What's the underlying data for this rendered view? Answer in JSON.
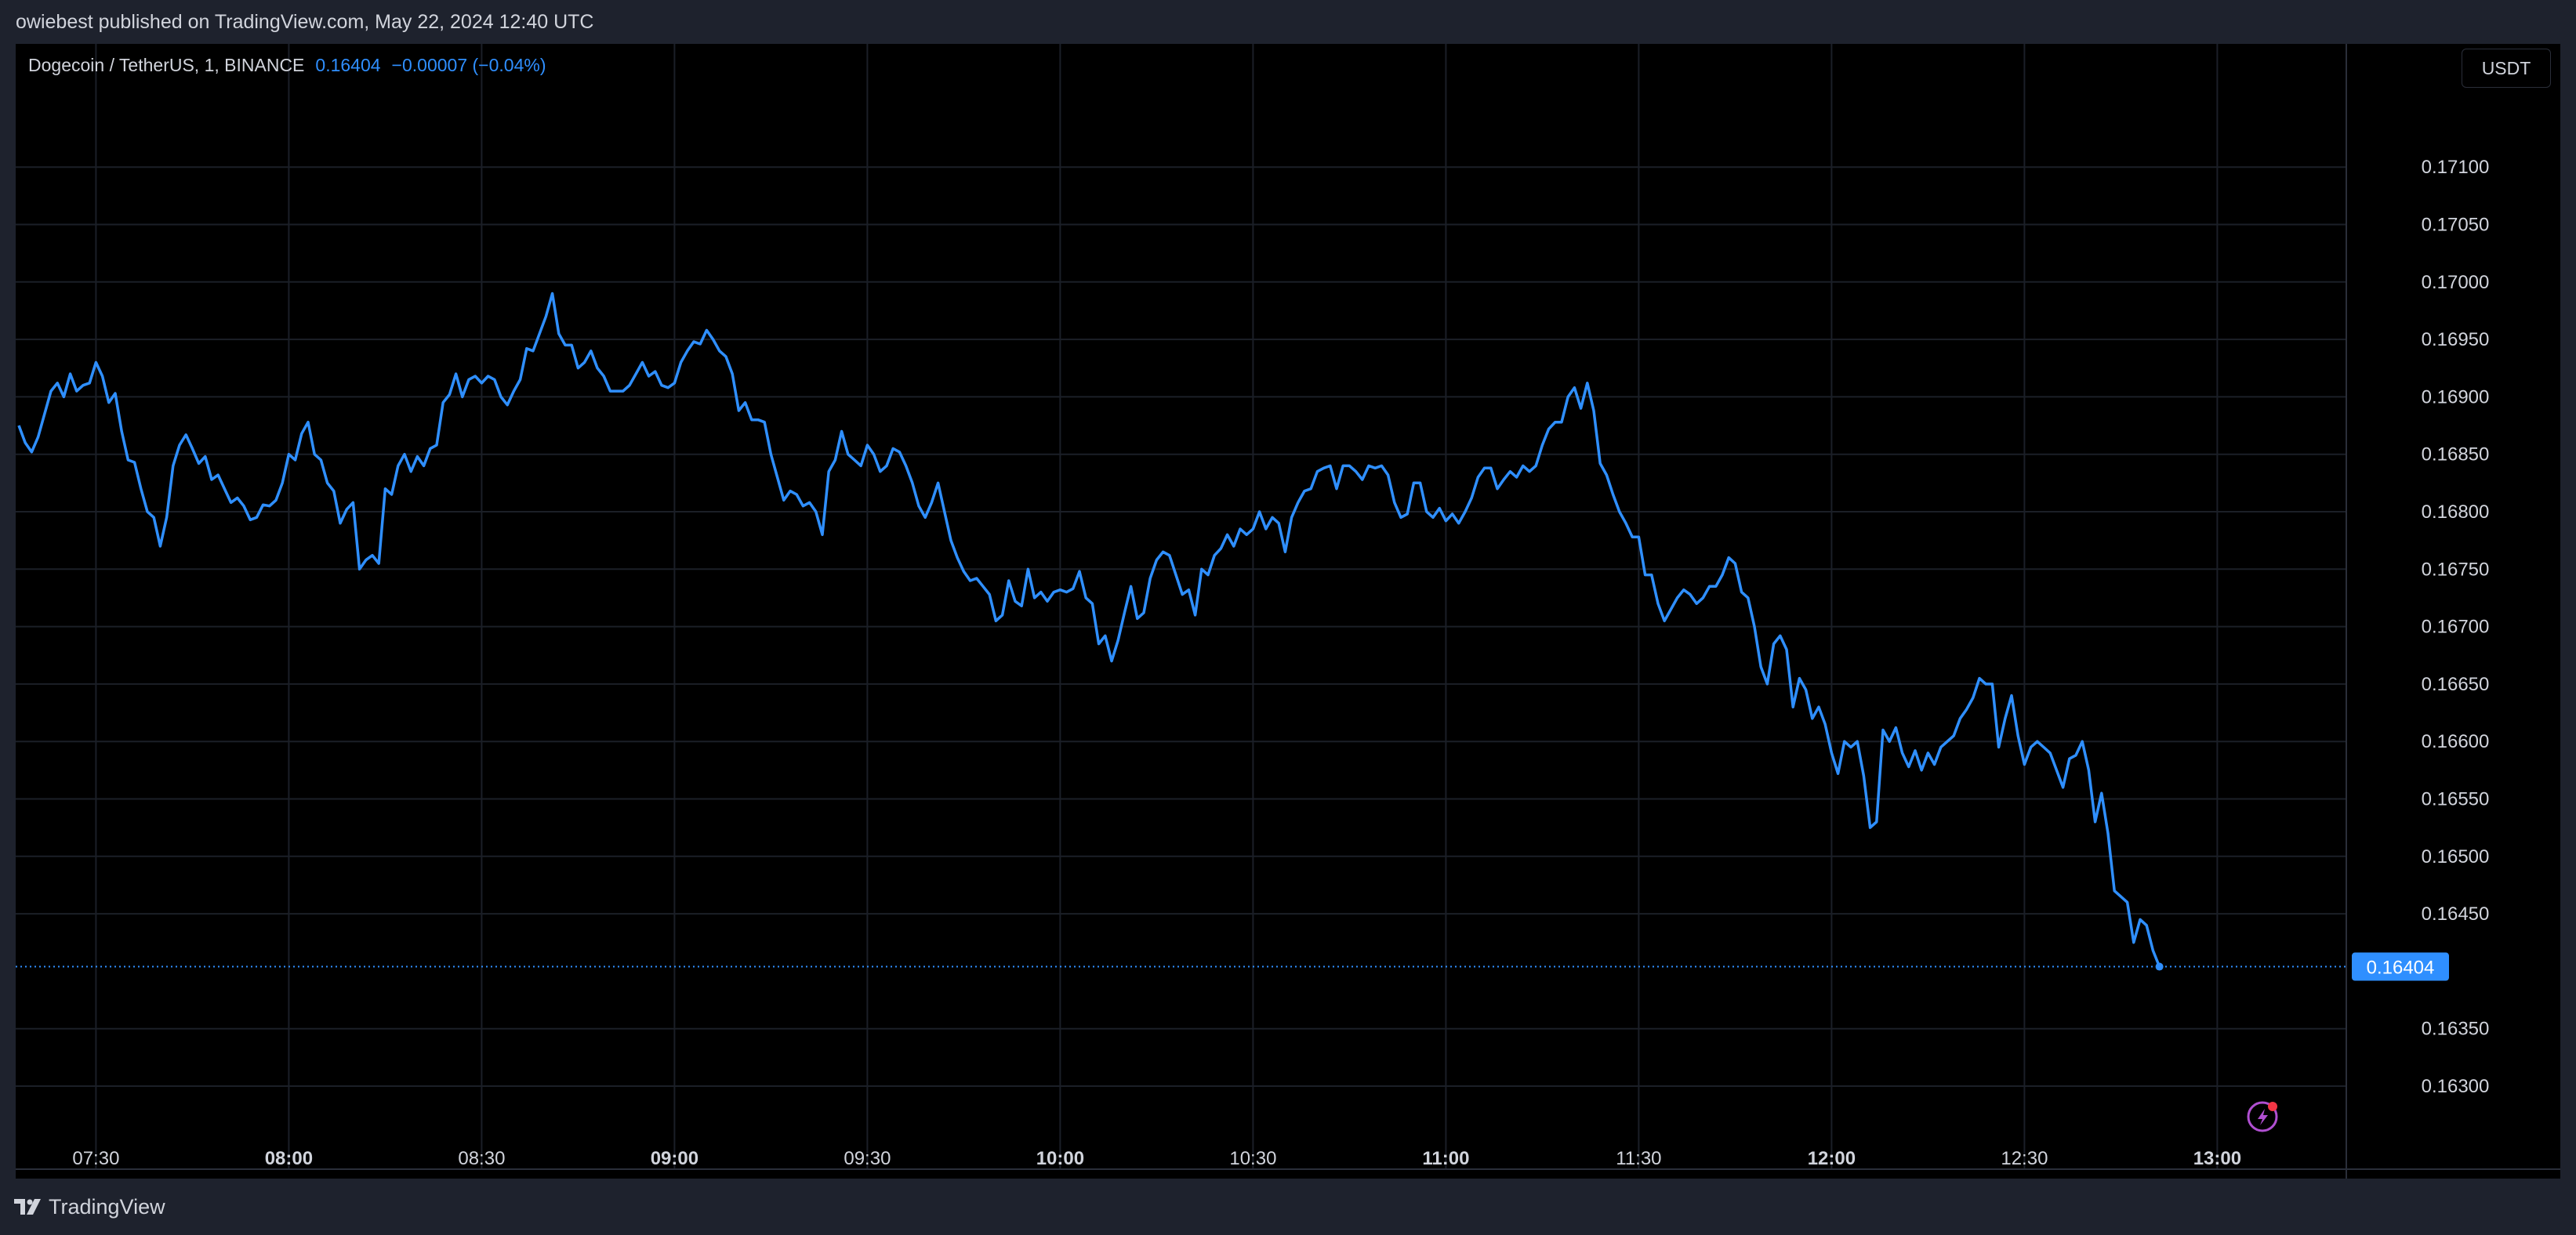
{
  "header": {
    "published": "owiebest published on TradingView.com, May 22, 2024 12:40 UTC"
  },
  "legend": {
    "symbol": "Dogecoin / TetherUS, 1, BINANCE",
    "price": "0.16404",
    "change": "−0.00007 (−0.04%)"
  },
  "currency_label": "USDT",
  "footer": {
    "brand": "TradingView"
  },
  "colors": {
    "line": "#2f8fff",
    "grid": "#1b1f27",
    "axis_text": "#d1d4dc",
    "background": "#000000"
  },
  "icons": {
    "lightning": "lightning-icon",
    "logo": "tradingview-logo-icon"
  },
  "chart_data": {
    "type": "line",
    "title": "",
    "xlabel": "",
    "ylabel": "",
    "x_tick_labels": [
      {
        "label": "07:30",
        "minute": 450,
        "bold": false
      },
      {
        "label": "08:00",
        "minute": 480,
        "bold": true
      },
      {
        "label": "08:30",
        "minute": 510,
        "bold": false
      },
      {
        "label": "09:00",
        "minute": 540,
        "bold": true
      },
      {
        "label": "09:30",
        "minute": 570,
        "bold": false
      },
      {
        "label": "10:00",
        "minute": 600,
        "bold": true
      },
      {
        "label": "10:30",
        "minute": 630,
        "bold": false
      },
      {
        "label": "11:00",
        "minute": 660,
        "bold": true
      },
      {
        "label": "11:30",
        "minute": 690,
        "bold": false
      },
      {
        "label": "12:00",
        "minute": 720,
        "bold": true
      },
      {
        "label": "12:30",
        "minute": 750,
        "bold": false
      },
      {
        "label": "13:00",
        "minute": 780,
        "bold": true
      }
    ],
    "y_ticks": [
      "0.17100",
      "0.17050",
      "0.17000",
      "0.16950",
      "0.16900",
      "0.16850",
      "0.16800",
      "0.16750",
      "0.16700",
      "0.16650",
      "0.16600",
      "0.16550",
      "0.16500",
      "0.16450",
      "0.16350",
      "0.16300"
    ],
    "xlim": [
      438,
      780.5
    ],
    "ylim": [
      0.1626,
      0.17165
    ],
    "last_value": 0.16404,
    "last_value_label": "0.16404",
    "grid": true,
    "points": [
      [
        438,
        0.16875
      ],
      [
        439,
        0.1686
      ],
      [
        440,
        0.16852
      ],
      [
        441,
        0.16865
      ],
      [
        442,
        0.16885
      ],
      [
        443,
        0.16905
      ],
      [
        444,
        0.16912
      ],
      [
        445,
        0.169
      ],
      [
        446,
        0.1692
      ],
      [
        447,
        0.16905
      ],
      [
        448,
        0.1691
      ],
      [
        449,
        0.16912
      ],
      [
        450,
        0.1693
      ],
      [
        451,
        0.16918
      ],
      [
        452,
        0.16895
      ],
      [
        453,
        0.16903
      ],
      [
        454,
        0.1687
      ],
      [
        455,
        0.16845
      ],
      [
        456,
        0.16843
      ],
      [
        457,
        0.1682
      ],
      [
        458,
        0.168
      ],
      [
        459,
        0.16795
      ],
      [
        460,
        0.1677
      ],
      [
        461,
        0.16795
      ],
      [
        462,
        0.1684
      ],
      [
        463,
        0.16858
      ],
      [
        464,
        0.16867
      ],
      [
        465,
        0.16855
      ],
      [
        466,
        0.16842
      ],
      [
        467,
        0.16848
      ],
      [
        468,
        0.16828
      ],
      [
        469,
        0.16832
      ],
      [
        470,
        0.1682
      ],
      [
        471,
        0.16808
      ],
      [
        472,
        0.16812
      ],
      [
        473,
        0.16805
      ],
      [
        474,
        0.16793
      ],
      [
        475,
        0.16795
      ],
      [
        476,
        0.16806
      ],
      [
        477,
        0.16805
      ],
      [
        478,
        0.1681
      ],
      [
        479,
        0.16825
      ],
      [
        480,
        0.1685
      ],
      [
        481,
        0.16845
      ],
      [
        482,
        0.16868
      ],
      [
        483,
        0.16878
      ],
      [
        484,
        0.1685
      ],
      [
        485,
        0.16845
      ],
      [
        486,
        0.16825
      ],
      [
        487,
        0.16818
      ],
      [
        488,
        0.1679
      ],
      [
        489,
        0.16802
      ],
      [
        490,
        0.16808
      ],
      [
        491,
        0.1675
      ],
      [
        492,
        0.16758
      ],
      [
        493,
        0.16762
      ],
      [
        494,
        0.16755
      ],
      [
        495,
        0.1682
      ],
      [
        496,
        0.16815
      ],
      [
        497,
        0.1684
      ],
      [
        498,
        0.1685
      ],
      [
        499,
        0.16835
      ],
      [
        500,
        0.16848
      ],
      [
        501,
        0.1684
      ],
      [
        502,
        0.16855
      ],
      [
        503,
        0.16858
      ],
      [
        504,
        0.16895
      ],
      [
        505,
        0.16902
      ],
      [
        506,
        0.1692
      ],
      [
        507,
        0.169
      ],
      [
        508,
        0.16915
      ],
      [
        509,
        0.16918
      ],
      [
        510,
        0.16912
      ],
      [
        511,
        0.16918
      ],
      [
        512,
        0.16915
      ],
      [
        513,
        0.169
      ],
      [
        514,
        0.16893
      ],
      [
        515,
        0.16905
      ],
      [
        516,
        0.16915
      ],
      [
        517,
        0.16942
      ],
      [
        518,
        0.1694
      ],
      [
        519,
        0.16955
      ],
      [
        520,
        0.1697
      ],
      [
        521,
        0.1699
      ],
      [
        522,
        0.16955
      ],
      [
        523,
        0.16945
      ],
      [
        524,
        0.16945
      ],
      [
        525,
        0.16925
      ],
      [
        526,
        0.1693
      ],
      [
        527,
        0.1694
      ],
      [
        528,
        0.16925
      ],
      [
        529,
        0.16918
      ],
      [
        530,
        0.16905
      ],
      [
        531,
        0.16905
      ],
      [
        532,
        0.16905
      ],
      [
        533,
        0.1691
      ],
      [
        534,
        0.1692
      ],
      [
        535,
        0.1693
      ],
      [
        536,
        0.16918
      ],
      [
        537,
        0.16922
      ],
      [
        538,
        0.1691
      ],
      [
        539,
        0.16908
      ],
      [
        540,
        0.16912
      ],
      [
        541,
        0.1693
      ],
      [
        542,
        0.1694
      ],
      [
        543,
        0.16948
      ],
      [
        544,
        0.16946
      ],
      [
        545,
        0.16958
      ],
      [
        546,
        0.1695
      ],
      [
        547,
        0.1694
      ],
      [
        548,
        0.16935
      ],
      [
        549,
        0.1692
      ],
      [
        550,
        0.16888
      ],
      [
        551,
        0.16895
      ],
      [
        552,
        0.1688
      ],
      [
        553,
        0.1688
      ],
      [
        554,
        0.16878
      ],
      [
        555,
        0.1685
      ],
      [
        556,
        0.1683
      ],
      [
        557,
        0.1681
      ],
      [
        558,
        0.16818
      ],
      [
        559,
        0.16815
      ],
      [
        560,
        0.16805
      ],
      [
        561,
        0.16808
      ],
      [
        562,
        0.168
      ],
      [
        563,
        0.1678
      ],
      [
        564,
        0.16835
      ],
      [
        565,
        0.16845
      ],
      [
        566,
        0.1687
      ],
      [
        567,
        0.1685
      ],
      [
        568,
        0.16845
      ],
      [
        569,
        0.1684
      ],
      [
        570,
        0.16858
      ],
      [
        571,
        0.1685
      ],
      [
        572,
        0.16835
      ],
      [
        573,
        0.1684
      ],
      [
        574,
        0.16855
      ],
      [
        575,
        0.16852
      ],
      [
        576,
        0.1684
      ],
      [
        577,
        0.16825
      ],
      [
        578,
        0.16805
      ],
      [
        579,
        0.16795
      ],
      [
        580,
        0.16808
      ],
      [
        581,
        0.16825
      ],
      [
        582,
        0.168
      ],
      [
        583,
        0.16775
      ],
      [
        584,
        0.1676
      ],
      [
        585,
        0.16748
      ],
      [
        586,
        0.1674
      ],
      [
        587,
        0.16742
      ],
      [
        588,
        0.16735
      ],
      [
        589,
        0.16728
      ],
      [
        590,
        0.16705
      ],
      [
        591,
        0.1671
      ],
      [
        592,
        0.1674
      ],
      [
        593,
        0.16722
      ],
      [
        594,
        0.16718
      ],
      [
        595,
        0.1675
      ],
      [
        596,
        0.16725
      ],
      [
        597,
        0.1673
      ],
      [
        598,
        0.16722
      ],
      [
        599,
        0.1673
      ],
      [
        600,
        0.16732
      ],
      [
        601,
        0.1673
      ],
      [
        602,
        0.16733
      ],
      [
        603,
        0.16748
      ],
      [
        604,
        0.16725
      ],
      [
        605,
        0.1672
      ],
      [
        606,
        0.16685
      ],
      [
        607,
        0.16692
      ],
      [
        608,
        0.1667
      ],
      [
        609,
        0.16688
      ],
      [
        610,
        0.16712
      ],
      [
        611,
        0.16735
      ],
      [
        612,
        0.16707
      ],
      [
        613,
        0.16712
      ],
      [
        614,
        0.16742
      ],
      [
        615,
        0.16758
      ],
      [
        616,
        0.16765
      ],
      [
        617,
        0.16762
      ],
      [
        618,
        0.16745
      ],
      [
        619,
        0.16728
      ],
      [
        620,
        0.16732
      ],
      [
        621,
        0.1671
      ],
      [
        622,
        0.1675
      ],
      [
        623,
        0.16745
      ],
      [
        624,
        0.16762
      ],
      [
        625,
        0.16768
      ],
      [
        626,
        0.1678
      ],
      [
        627,
        0.1677
      ],
      [
        628,
        0.16785
      ],
      [
        629,
        0.1678
      ],
      [
        630,
        0.16785
      ],
      [
        631,
        0.168
      ],
      [
        632,
        0.16785
      ],
      [
        633,
        0.16795
      ],
      [
        634,
        0.1679
      ],
      [
        635,
        0.16765
      ],
      [
        636,
        0.16795
      ],
      [
        637,
        0.16808
      ],
      [
        638,
        0.16818
      ],
      [
        639,
        0.1682
      ],
      [
        640,
        0.16835
      ],
      [
        641,
        0.16838
      ],
      [
        642,
        0.1684
      ],
      [
        643,
        0.1682
      ],
      [
        644,
        0.1684
      ],
      [
        645,
        0.1684
      ],
      [
        646,
        0.16835
      ],
      [
        647,
        0.16828
      ],
      [
        648,
        0.1684
      ],
      [
        649,
        0.16838
      ],
      [
        650,
        0.1684
      ],
      [
        651,
        0.16832
      ],
      [
        652,
        0.16808
      ],
      [
        653,
        0.16795
      ],
      [
        654,
        0.16798
      ],
      [
        655,
        0.16825
      ],
      [
        656,
        0.16825
      ],
      [
        657,
        0.168
      ],
      [
        658,
        0.16795
      ],
      [
        659,
        0.16803
      ],
      [
        660,
        0.16792
      ],
      [
        661,
        0.16798
      ],
      [
        662,
        0.1679
      ],
      [
        663,
        0.168
      ],
      [
        664,
        0.16812
      ],
      [
        665,
        0.1683
      ],
      [
        666,
        0.16838
      ],
      [
        667,
        0.16838
      ],
      [
        668,
        0.1682
      ],
      [
        669,
        0.16828
      ],
      [
        670,
        0.16835
      ],
      [
        671,
        0.1683
      ],
      [
        672,
        0.1684
      ],
      [
        673,
        0.16835
      ],
      [
        674,
        0.1684
      ],
      [
        675,
        0.16858
      ],
      [
        676,
        0.16872
      ],
      [
        677,
        0.16878
      ],
      [
        678,
        0.16878
      ],
      [
        679,
        0.169
      ],
      [
        680,
        0.16908
      ],
      [
        681,
        0.1689
      ],
      [
        682,
        0.16912
      ],
      [
        683,
        0.16888
      ],
      [
        684,
        0.16842
      ],
      [
        685,
        0.16832
      ],
      [
        686,
        0.16815
      ],
      [
        687,
        0.168
      ],
      [
        688,
        0.1679
      ],
      [
        689,
        0.16778
      ],
      [
        690,
        0.16778
      ],
      [
        691,
        0.16745
      ],
      [
        692,
        0.16745
      ],
      [
        693,
        0.1672
      ],
      [
        694,
        0.16705
      ],
      [
        695,
        0.16715
      ],
      [
        696,
        0.16725
      ],
      [
        697,
        0.16732
      ],
      [
        698,
        0.16728
      ],
      [
        699,
        0.1672
      ],
      [
        700,
        0.16725
      ],
      [
        701,
        0.16735
      ],
      [
        702,
        0.16735
      ],
      [
        703,
        0.16745
      ],
      [
        704,
        0.1676
      ],
      [
        705,
        0.16755
      ],
      [
        706,
        0.1673
      ],
      [
        707,
        0.16725
      ],
      [
        708,
        0.167
      ],
      [
        709,
        0.16665
      ],
      [
        710,
        0.1665
      ],
      [
        711,
        0.16685
      ],
      [
        712,
        0.16692
      ],
      [
        713,
        0.1668
      ],
      [
        714,
        0.1663
      ],
      [
        715,
        0.16655
      ],
      [
        716,
        0.16645
      ],
      [
        717,
        0.1662
      ],
      [
        718,
        0.1663
      ],
      [
        719,
        0.16615
      ],
      [
        720,
        0.1659
      ],
      [
        721,
        0.16572
      ],
      [
        722,
        0.166
      ],
      [
        723,
        0.16595
      ],
      [
        724,
        0.166
      ],
      [
        725,
        0.1657
      ],
      [
        726,
        0.16525
      ],
      [
        727,
        0.1653
      ],
      [
        728,
        0.1661
      ],
      [
        729,
        0.166
      ],
      [
        730,
        0.16612
      ],
      [
        731,
        0.1659
      ],
      [
        732,
        0.16578
      ],
      [
        733,
        0.16592
      ],
      [
        734,
        0.16575
      ],
      [
        735,
        0.1659
      ],
      [
        736,
        0.1658
      ],
      [
        737,
        0.16595
      ],
      [
        738,
        0.166
      ],
      [
        739,
        0.16605
      ],
      [
        740,
        0.1662
      ],
      [
        741,
        0.16628
      ],
      [
        742,
        0.16638
      ],
      [
        743,
        0.16655
      ],
      [
        744,
        0.1665
      ],
      [
        745,
        0.1665
      ],
      [
        746,
        0.16595
      ],
      [
        747,
        0.1662
      ],
      [
        748,
        0.1664
      ],
      [
        749,
        0.16605
      ],
      [
        750,
        0.1658
      ],
      [
        751,
        0.16595
      ],
      [
        752,
        0.166
      ],
      [
        753,
        0.16595
      ],
      [
        754,
        0.1659
      ],
      [
        755,
        0.16575
      ],
      [
        756,
        0.1656
      ],
      [
        757,
        0.16585
      ],
      [
        758,
        0.16588
      ],
      [
        759,
        0.166
      ],
      [
        760,
        0.16575
      ],
      [
        761,
        0.1653
      ],
      [
        762,
        0.16555
      ],
      [
        763,
        0.1652
      ],
      [
        764,
        0.1647
      ],
      [
        765,
        0.16465
      ],
      [
        766,
        0.1646
      ],
      [
        767,
        0.16425
      ],
      [
        768,
        0.16445
      ],
      [
        769,
        0.1644
      ],
      [
        770,
        0.16418
      ],
      [
        771,
        0.16404
      ]
    ]
  }
}
